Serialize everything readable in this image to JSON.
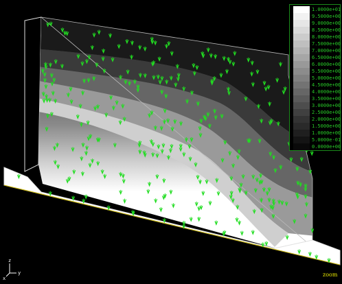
{
  "legend": {
    "entries": [
      {
        "label": "1.0000e+01",
        "color": "#ffffff"
      },
      {
        "label": "9.5000e+00",
        "color": "#f2f2f2"
      },
      {
        "label": "9.0000e+00",
        "color": "#e6e6e6"
      },
      {
        "label": "8.5000e+00",
        "color": "#d9d9d9"
      },
      {
        "label": "8.0000e+00",
        "color": "#cccccc"
      },
      {
        "label": "7.5000e+00",
        "color": "#bfbfbf"
      },
      {
        "label": "7.0000e+00",
        "color": "#b3b3b3"
      },
      {
        "label": "6.5000e+00",
        "color": "#a6a6a6"
      },
      {
        "label": "6.0000e+00",
        "color": "#999999"
      },
      {
        "label": "5.5000e+00",
        "color": "#8c8c8c"
      },
      {
        "label": "5.0000e+00",
        "color": "#808080"
      },
      {
        "label": "4.5000e+00",
        "color": "#737373"
      },
      {
        "label": "4.0000e+00",
        "color": "#666666"
      },
      {
        "label": "3.5000e+00",
        "color": "#5a5a5a"
      },
      {
        "label": "3.0000e+00",
        "color": "#4d4d4d"
      },
      {
        "label": "2.5000e+00",
        "color": "#404040"
      },
      {
        "label": "2.0000e+00",
        "color": "#333333"
      },
      {
        "label": "1.5000e+00",
        "color": "#2a2a2a"
      },
      {
        "label": "1.0000e+00",
        "color": "#1f1f1f"
      },
      {
        "label": "5.0000e-01",
        "color": "#141414"
      },
      {
        "label": "0.0000e+00",
        "color": "#0a0a0a"
      }
    ]
  },
  "view": {
    "zoom_label": "zoom"
  },
  "axes": {
    "z": "z",
    "x": "x",
    "y": "y"
  },
  "colors": {
    "vector": "#22dd22",
    "legend_text": "#28c828",
    "legend_border": "#1b8a1b",
    "zoom_text": "#e6e600",
    "edge": "#e0e0e0",
    "ground_edge": "#c8b400"
  }
}
